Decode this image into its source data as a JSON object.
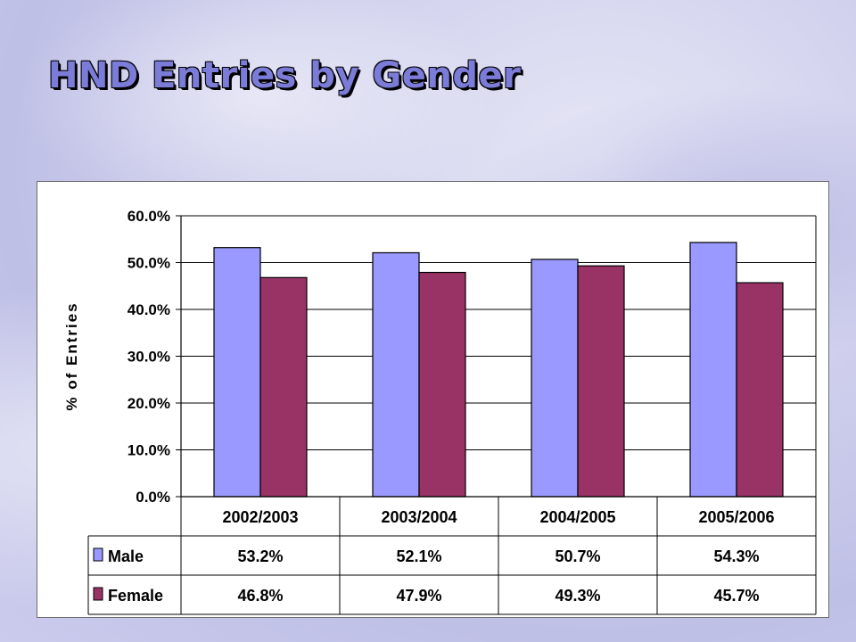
{
  "slide": {
    "title": "HND Entries by Gender"
  },
  "colors": {
    "male": "#9999ff",
    "female": "#993366",
    "title": "#7b7bd8"
  },
  "chart_data": {
    "type": "bar",
    "title": "",
    "ylabel": "% of Entries",
    "xlabel": "",
    "categories": [
      "2002/2003",
      "2003/2004",
      "2004/2005",
      "2005/2006"
    ],
    "series": [
      {
        "name": "Male",
        "values": [
          53.2,
          52.1,
          50.7,
          54.3
        ],
        "color": "#9999ff",
        "labels": [
          "53.2%",
          "52.1%",
          "50.7%",
          "54.3%"
        ]
      },
      {
        "name": "Female",
        "values": [
          46.8,
          47.9,
          49.3,
          45.7
        ],
        "color": "#993366",
        "labels": [
          "46.8%",
          "47.9%",
          "49.3%",
          "45.7%"
        ]
      }
    ],
    "ylim": [
      0,
      60
    ],
    "yticks": [
      0,
      10,
      20,
      30,
      40,
      50,
      60
    ],
    "ytick_labels": [
      "0.0%",
      "10.0%",
      "20.0%",
      "30.0%",
      "40.0%",
      "50.0%",
      "60.0%"
    ],
    "grid": true,
    "legend": "data-table-left"
  }
}
